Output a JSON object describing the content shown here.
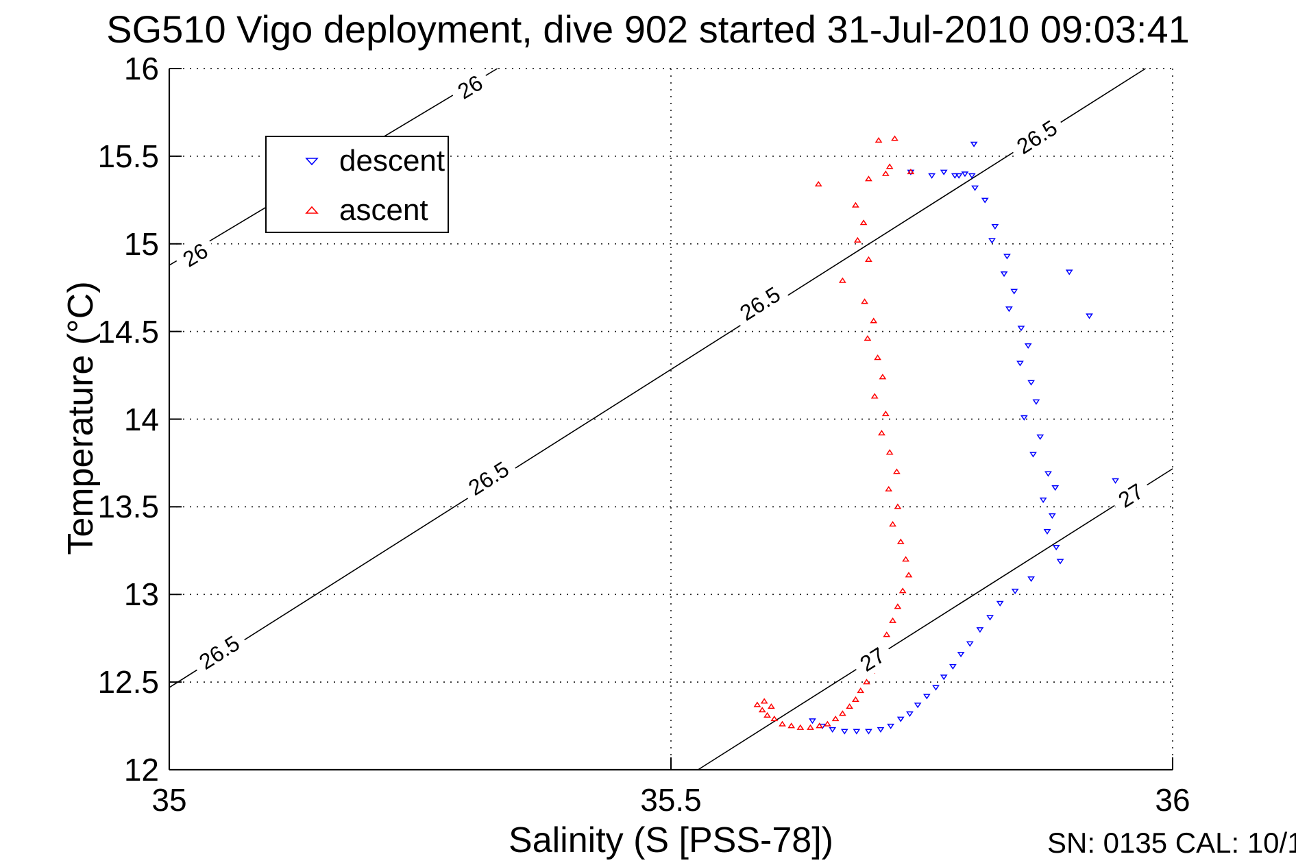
{
  "title": "SG510 Vigo deployment, dive 902 started 31-Jul-2010 09:03:41",
  "footer_note": "SN: 0135  CAL: 10/1",
  "legend": {
    "entries": [
      {
        "label": "descent",
        "color": "#0000ff",
        "marker": "triangle-down"
      },
      {
        "label": "ascent",
        "color": "#ff0000",
        "marker": "triangle-up"
      }
    ]
  },
  "chart_data": {
    "type": "scatter",
    "title": "SG510 Vigo deployment, dive 902 started 31-Jul-2010 09:03:41",
    "xlabel": "Salinity (S [PSS-78])",
    "ylabel": "Temperature (°C)",
    "xlim": [
      35,
      36
    ],
    "ylim": [
      12,
      16
    ],
    "x_tick_values": [
      35,
      35.5,
      36
    ],
    "x_tick_labels": [
      "35",
      "35.5",
      "36"
    ],
    "y_tick_values": [
      12,
      12.5,
      13,
      13.5,
      14,
      14.5,
      15,
      15.5,
      16
    ],
    "y_tick_labels": [
      "12",
      "12.5",
      "13",
      "13.5",
      "14",
      "14.5",
      "15",
      "15.5",
      "16"
    ],
    "grid": true,
    "legend_position": "upper-left-inside",
    "contours": [
      {
        "level": "26",
        "start": [
          35.0,
          14.878
        ],
        "end": [
          35.327,
          16.0
        ],
        "labels": [
          [
            35.026,
            14.937
          ],
          [
            35.3,
            15.894
          ]
        ]
      },
      {
        "level": "26.5",
        "start": [
          35.0,
          12.469
        ],
        "end": [
          35.973,
          16.0
        ],
        "labels": [
          [
            35.05,
            12.669
          ],
          [
            35.318,
            13.662
          ],
          [
            35.589,
            14.659
          ],
          [
            35.865,
            15.609
          ]
        ]
      },
      {
        "level": "27",
        "start": [
          35.527,
          12.0
        ],
        "end": [
          36.0,
          13.717
        ],
        "labels": [
          [
            35.701,
            12.63
          ],
          [
            35.958,
            13.564
          ]
        ]
      }
    ],
    "series": [
      {
        "name": "descent",
        "marker": "triangle-down",
        "color": "#0000ff",
        "points": [
          [
            35.739,
            15.41
          ],
          [
            35.76,
            15.39
          ],
          [
            35.772,
            15.41
          ],
          [
            35.783,
            15.39
          ],
          [
            35.787,
            15.39
          ],
          [
            35.793,
            15.4
          ],
          [
            35.8,
            15.39
          ],
          [
            35.803,
            15.32
          ],
          [
            35.813,
            15.25
          ],
          [
            35.802,
            15.57
          ],
          [
            35.823,
            15.1
          ],
          [
            35.82,
            15.02
          ],
          [
            35.835,
            14.93
          ],
          [
            35.832,
            14.83
          ],
          [
            35.842,
            14.73
          ],
          [
            35.837,
            14.63
          ],
          [
            35.849,
            14.52
          ],
          [
            35.856,
            14.42
          ],
          [
            35.848,
            14.32
          ],
          [
            35.859,
            14.21
          ],
          [
            35.864,
            14.1
          ],
          [
            35.852,
            14.01
          ],
          [
            35.868,
            13.9
          ],
          [
            35.861,
            13.8
          ],
          [
            35.876,
            13.69
          ],
          [
            35.883,
            13.61
          ],
          [
            35.871,
            13.54
          ],
          [
            35.88,
            13.45
          ],
          [
            35.875,
            13.36
          ],
          [
            35.884,
            13.27
          ],
          [
            35.888,
            13.19
          ],
          [
            35.897,
            14.84
          ],
          [
            35.917,
            14.59
          ],
          [
            35.943,
            13.65
          ],
          [
            35.859,
            13.09
          ],
          [
            35.843,
            13.02
          ],
          [
            35.828,
            12.95
          ],
          [
            35.818,
            12.87
          ],
          [
            35.808,
            12.8
          ],
          [
            35.798,
            12.72
          ],
          [
            35.789,
            12.66
          ],
          [
            35.781,
            12.59
          ],
          [
            35.772,
            12.53
          ],
          [
            35.764,
            12.47
          ],
          [
            35.755,
            12.42
          ],
          [
            35.746,
            12.37
          ],
          [
            35.738,
            12.32
          ],
          [
            35.729,
            12.29
          ],
          [
            35.719,
            12.25
          ],
          [
            35.709,
            12.23
          ],
          [
            35.697,
            12.22
          ],
          [
            35.685,
            12.22
          ],
          [
            35.673,
            12.22
          ],
          [
            35.661,
            12.23
          ],
          [
            35.651,
            12.25
          ],
          [
            35.641,
            12.28
          ]
        ]
      },
      {
        "name": "ascent",
        "marker": "triangle-up",
        "color": "#ff0000",
        "points": [
          [
            35.647,
            15.34
          ],
          [
            35.697,
            15.37
          ],
          [
            35.714,
            15.4
          ],
          [
            35.718,
            15.44
          ],
          [
            35.739,
            15.41
          ],
          [
            35.707,
            15.59
          ],
          [
            35.723,
            15.6
          ],
          [
            35.684,
            15.22
          ],
          [
            35.692,
            15.12
          ],
          [
            35.686,
            15.02
          ],
          [
            35.697,
            14.91
          ],
          [
            35.671,
            14.79
          ],
          [
            35.693,
            14.67
          ],
          [
            35.702,
            14.56
          ],
          [
            35.696,
            14.46
          ],
          [
            35.706,
            14.35
          ],
          [
            35.711,
            14.24
          ],
          [
            35.703,
            14.13
          ],
          [
            35.714,
            14.03
          ],
          [
            35.71,
            13.92
          ],
          [
            35.718,
            13.81
          ],
          [
            35.725,
            13.7
          ],
          [
            35.717,
            13.6
          ],
          [
            35.726,
            13.5
          ],
          [
            35.721,
            13.4
          ],
          [
            35.729,
            13.3
          ],
          [
            35.734,
            13.2
          ],
          [
            35.737,
            13.11
          ],
          [
            35.731,
            13.02
          ],
          [
            35.726,
            12.93
          ],
          [
            35.721,
            12.85
          ],
          [
            35.715,
            12.77
          ],
          [
            35.711,
            12.7
          ],
          [
            35.706,
            12.63
          ],
          [
            35.7,
            12.56
          ],
          [
            35.695,
            12.5
          ],
          [
            35.689,
            12.45
          ],
          [
            35.684,
            12.4
          ],
          [
            35.678,
            12.36
          ],
          [
            35.671,
            12.32
          ],
          [
            35.664,
            12.29
          ],
          [
            35.656,
            12.26
          ],
          [
            35.648,
            12.25
          ],
          [
            35.639,
            12.24
          ],
          [
            35.629,
            12.24
          ],
          [
            35.62,
            12.25
          ],
          [
            35.611,
            12.26
          ],
          [
            35.603,
            12.29
          ],
          [
            35.596,
            12.31
          ],
          [
            35.591,
            12.34
          ],
          [
            35.586,
            12.37
          ],
          [
            35.593,
            12.39
          ],
          [
            35.6,
            12.36
          ]
        ]
      }
    ]
  }
}
